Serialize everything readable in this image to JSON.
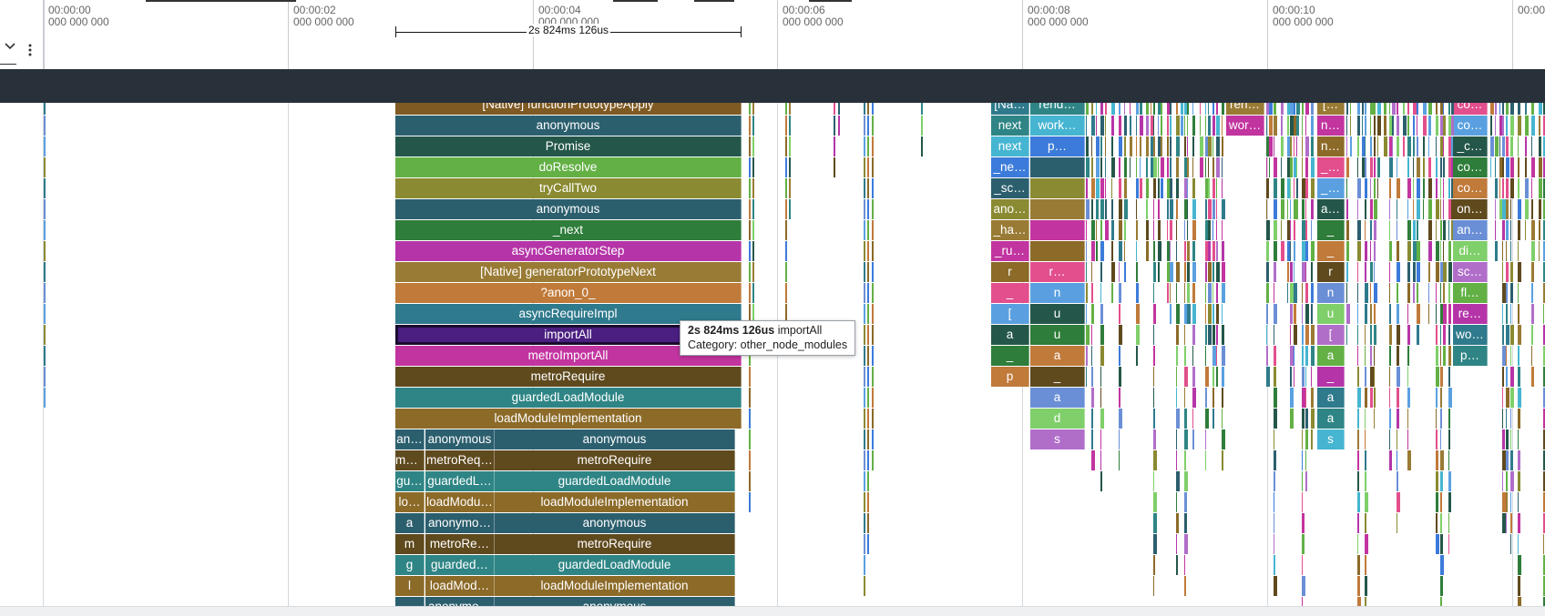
{
  "ruler": {
    "ticks": [
      {
        "time": "00:00:00",
        "sub": "000 000 000"
      },
      {
        "time": "00:00:02",
        "sub": "000 000 000"
      },
      {
        "time": "00:00:04",
        "sub": "000 000 000"
      },
      {
        "time": "00:00:06",
        "sub": "000 000 000"
      },
      {
        "time": "00:00:08",
        "sub": "000 000 000"
      },
      {
        "time": "00:00:10",
        "sub": "000 000 000"
      },
      {
        "time": "00:00",
        "sub": ""
      }
    ],
    "selection_label": "2s 824ms 126us",
    "icons": {
      "collapse": "chevron-down-icon",
      "menu": "more-vert-icon"
    }
  },
  "tooltip": {
    "duration": "2s 824ms 126us",
    "name": "importAll",
    "category": "Category: other_node_modules"
  },
  "main_stack": [
    {
      "label": "[Native] functionPrototypeApply",
      "color": "#7f5a22"
    },
    {
      "label": "anonymous",
      "color": "#2c5f6e"
    },
    {
      "label": "Promise",
      "color": "#24574a"
    },
    {
      "label": "doResolve",
      "color": "#63b045"
    },
    {
      "label": "tryCallTwo",
      "color": "#8a8a32"
    },
    {
      "label": "anonymous",
      "color": "#2c5f6e"
    },
    {
      "label": "_next",
      "color": "#2e7d3a"
    },
    {
      "label": "asyncGeneratorStep",
      "color": "#b535a8"
    },
    {
      "label": "[Native] generatorPrototypeNext",
      "color": "#9a7b35"
    },
    {
      "label": "?anon_0_",
      "color": "#c07a3a"
    },
    {
      "label": "asyncRequireImpl",
      "color": "#2f7a8c"
    },
    {
      "label": "importAll",
      "color": "#4a1f80"
    },
    {
      "label": "metroImportAll",
      "color": "#c2349f"
    },
    {
      "label": "metroRequire",
      "color": "#5f4a1e"
    },
    {
      "label": "guardedLoadModule",
      "color": "#2f8585"
    },
    {
      "label": "loadModuleImplementation",
      "color": "#8c6a28"
    }
  ],
  "split_rows": [
    {
      "cells": [
        {
          "label": "an…",
          "color": "#2c5f6e"
        },
        {
          "label": "anonymous",
          "color": "#2c5f6e"
        },
        {
          "label": "anonymous",
          "color": "#2c5f6e"
        }
      ]
    },
    {
      "cells": [
        {
          "label": "me…",
          "color": "#5f4a1e"
        },
        {
          "label": "metroReq…",
          "color": "#5f4a1e"
        },
        {
          "label": "metroRequire",
          "color": "#5f4a1e"
        }
      ]
    },
    {
      "cells": [
        {
          "label": "gu…",
          "color": "#2f8585"
        },
        {
          "label": "guardedL…",
          "color": "#2f8585"
        },
        {
          "label": "guardedLoadModule",
          "color": "#2f8585"
        }
      ]
    },
    {
      "cells": [
        {
          "label": "lo…",
          "color": "#8c6a28"
        },
        {
          "label": "loadModu…",
          "color": "#8c6a28"
        },
        {
          "label": "loadModuleImplementation",
          "color": "#8c6a28"
        }
      ]
    },
    {
      "cells": [
        {
          "label": "a",
          "color": "#2c5f6e"
        },
        {
          "label": "anonymo…",
          "color": "#2c5f6e"
        },
        {
          "label": "anonymous",
          "color": "#2c5f6e"
        }
      ]
    },
    {
      "cells": [
        {
          "label": "m",
          "color": "#5f4a1e"
        },
        {
          "label": "metroRe…",
          "color": "#5f4a1e"
        },
        {
          "label": "metroRequire",
          "color": "#5f4a1e"
        }
      ]
    },
    {
      "cells": [
        {
          "label": "g",
          "color": "#2f8585"
        },
        {
          "label": "guarded…",
          "color": "#2f8585"
        },
        {
          "label": "guardedLoadModule",
          "color": "#2f8585"
        }
      ]
    },
    {
      "cells": [
        {
          "label": "l",
          "color": "#8c6a28"
        },
        {
          "label": "loadMod…",
          "color": "#8c6a28"
        },
        {
          "label": "loadModuleImplementation",
          "color": "#8c6a28"
        }
      ]
    },
    {
      "cells": [
        {
          "label": "",
          "color": "#2c5f6e"
        },
        {
          "label": "anonymo…",
          "color": "#2c5f6e"
        },
        {
          "label": "anonymous",
          "color": "#2c5f6e"
        }
      ]
    }
  ],
  "cluster_a": [
    "[Na…",
    "next",
    "next",
    "_ne…",
    "_sc…",
    "ano…",
    "_ha…",
    "_ru…",
    "r",
    "_",
    "[",
    "a",
    "_",
    "p"
  ],
  "cluster_a2": [
    "rend…",
    "work…",
    "p…",
    "",
    "",
    "",
    "",
    "",
    "r…",
    "n",
    "u",
    "u",
    "a",
    "_",
    "a",
    "d",
    "s"
  ],
  "cluster_b": [
    "ren…",
    "wor…"
  ],
  "cluster_c": [
    "[…",
    "n…",
    "n…",
    "_…",
    "_…",
    "a…",
    "_",
    "_",
    "r",
    "n",
    "u",
    "[",
    "a",
    "_",
    "a",
    "a",
    "s"
  ],
  "cluster_d": [
    "co…",
    "co…",
    "_c…",
    "co…",
    "co…",
    "on…",
    "an…",
    "di…",
    "sc…",
    "fl…",
    "re…",
    "wo…",
    "p…"
  ],
  "colors": {
    "header_bar": "#28303a",
    "palette": [
      "#2c5f6e",
      "#24574a",
      "#63b045",
      "#8a8a32",
      "#2e7d3a",
      "#b535a8",
      "#9a7b35",
      "#c07a3a",
      "#2f7a8c",
      "#c2349f",
      "#5f4a1e",
      "#2f8585",
      "#8c6a28",
      "#6b8fd6",
      "#46b5d1",
      "#e24f8c",
      "#7fcf6a",
      "#3c7bd9",
      "#5aa0e0",
      "#b06ec9"
    ]
  }
}
